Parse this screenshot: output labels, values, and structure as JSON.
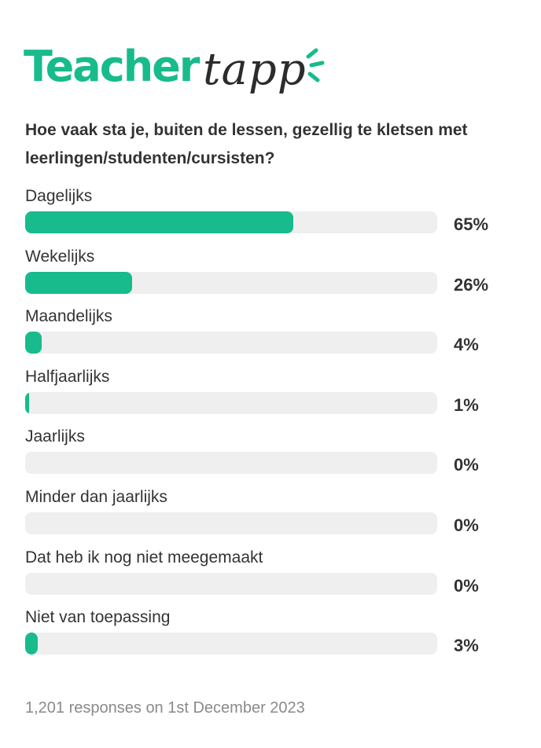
{
  "brand": {
    "word_primary": "Teacher",
    "word_secondary": "tapp",
    "colors": {
      "primary": "#17bb8c",
      "secondary": "#2c2c2c"
    }
  },
  "chart_data": {
    "type": "bar",
    "orientation": "horizontal",
    "title": "Hoe vaak sta je, buiten de lessen, gezellig te kletsen met leerlingen/studenten/cursisten?",
    "categories": [
      "Dagelijks",
      "Wekelijks",
      "Maandelijks",
      "Halfjaarlijks",
      "Jaarlijks",
      "Minder dan jaarlijks",
      "Dat heb ik nog niet meegemaakt",
      "Niet van toepassing"
    ],
    "values": [
      65,
      26,
      4,
      1,
      0,
      0,
      0,
      3
    ],
    "value_labels": [
      "65%",
      "26%",
      "4%",
      "1%",
      "0%",
      "0%",
      "0%",
      "3%"
    ],
    "unit": "%",
    "xlim": [
      0,
      100
    ],
    "bar_color": "#17bb8c",
    "track_color": "#efefef",
    "grid": false,
    "legend": "none"
  },
  "footer": {
    "text": "1,201 responses on 1st December 2023"
  }
}
